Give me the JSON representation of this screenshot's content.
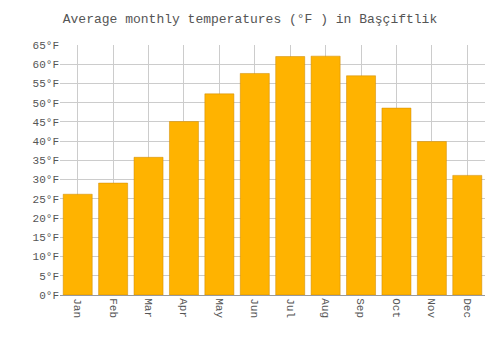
{
  "chart_data": {
    "type": "bar",
    "title": "Average monthly temperatures (°F ) in Başçiftlik",
    "categories": [
      "Jan",
      "Feb",
      "Mar",
      "Apr",
      "May",
      "Jun",
      "Jul",
      "Aug",
      "Sep",
      "Oct",
      "Nov",
      "Dec"
    ],
    "values": [
      26.2,
      29.1,
      35.8,
      45.1,
      52.3,
      57.6,
      62.0,
      62.1,
      57.0,
      48.6,
      39.9,
      31.1
    ],
    "color": "#FFB300",
    "ylim": [
      0,
      65
    ],
    "yticks": [
      {
        "value": 0,
        "label": "0°F"
      },
      {
        "value": 5,
        "label": "5°F"
      },
      {
        "value": 10,
        "label": "10°F"
      },
      {
        "value": 15,
        "label": "15°F"
      },
      {
        "value": 20,
        "label": "20°F"
      },
      {
        "value": 25,
        "label": "25°F"
      },
      {
        "value": 30,
        "label": "30°F"
      },
      {
        "value": 35,
        "label": "35°F"
      },
      {
        "value": 40,
        "label": "40°F"
      },
      {
        "value": 45,
        "label": "45°F"
      },
      {
        "value": 50,
        "label": "50°F"
      },
      {
        "value": 55,
        "label": "55°F"
      },
      {
        "value": 60,
        "label": "60°F"
      },
      {
        "value": 65,
        "label": "65°F"
      }
    ],
    "grid": true
  }
}
